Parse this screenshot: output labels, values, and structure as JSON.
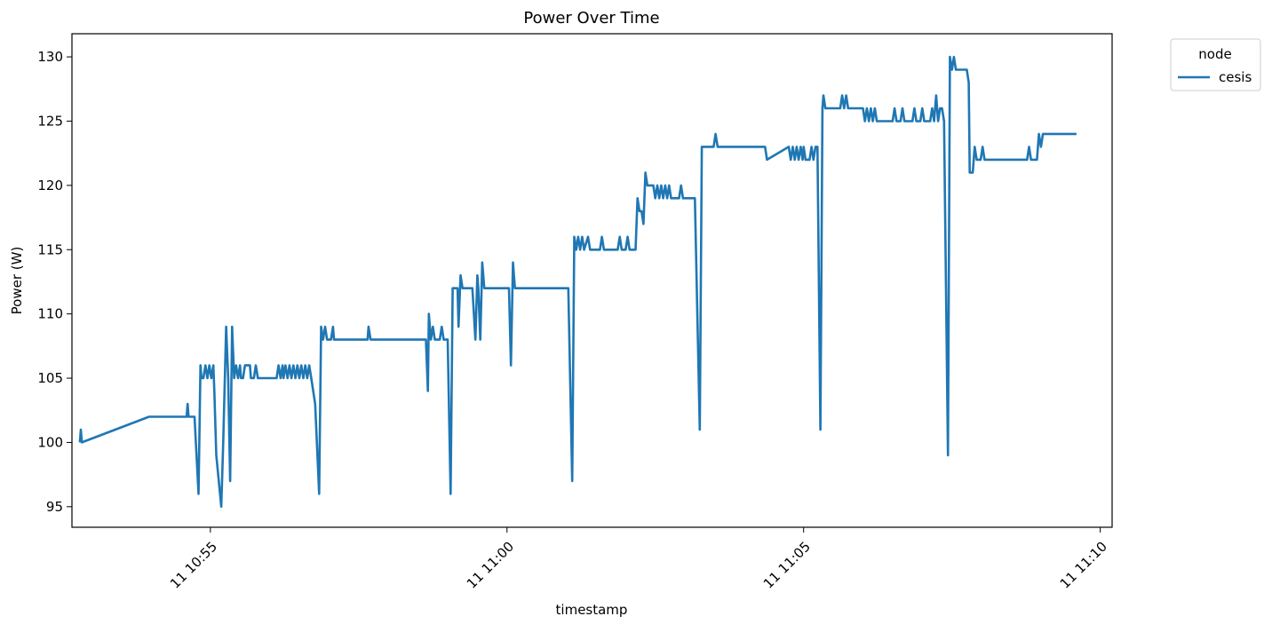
{
  "chart_data": {
    "type": "line",
    "title": "Power Over Time",
    "xlabel": "timestamp",
    "ylabel": "Power (W)",
    "xlim": [
      "10:52:40",
      "11:10:12"
    ],
    "ylim": [
      93.4,
      131.8
    ],
    "x_ticks": [
      "11 10:55",
      "11 11:00",
      "11 11:05",
      "11 11:10"
    ],
    "x_tick_times": [
      "10:55:00",
      "11:00:00",
      "11:05:00",
      "11:10:00"
    ],
    "y_ticks": [
      95,
      100,
      105,
      110,
      115,
      120,
      125,
      130
    ],
    "grid": false,
    "legend": {
      "title": "node",
      "placement": "outside-top-right"
    },
    "series": [
      {
        "name": "cesis",
        "color": "#1f77b4",
        "points": [
          [
            "10:52:48",
            100
          ],
          [
            "10:52:49",
            101
          ],
          [
            "10:52:50",
            100
          ],
          [
            "10:53:58",
            102
          ],
          [
            "10:54:36",
            102
          ],
          [
            "10:54:37",
            103
          ],
          [
            "10:54:38",
            102
          ],
          [
            "10:54:44",
            102
          ],
          [
            "10:54:48",
            96
          ],
          [
            "10:54:50",
            106
          ],
          [
            "10:54:51",
            105
          ],
          [
            "10:54:53",
            105
          ],
          [
            "10:54:55",
            106
          ],
          [
            "10:54:57",
            105
          ],
          [
            "10:54:59",
            106
          ],
          [
            "10:55:01",
            105
          ],
          [
            "10:55:03",
            106
          ],
          [
            "10:55:04",
            104
          ],
          [
            "10:55:06",
            99
          ],
          [
            "10:55:11",
            95
          ],
          [
            "10:55:13",
            100
          ],
          [
            "10:55:16",
            109
          ],
          [
            "10:55:18",
            105
          ],
          [
            "10:55:20",
            97
          ],
          [
            "10:55:22",
            109
          ],
          [
            "10:55:24",
            105
          ],
          [
            "10:55:26",
            106
          ],
          [
            "10:55:28",
            105
          ],
          [
            "10:55:30",
            106
          ],
          [
            "10:55:31",
            105
          ],
          [
            "10:55:33",
            105
          ],
          [
            "10:55:35",
            106
          ],
          [
            "10:55:40",
            106
          ],
          [
            "10:55:41",
            105
          ],
          [
            "10:55:44",
            105
          ],
          [
            "10:55:46",
            106
          ],
          [
            "10:55:48",
            105
          ],
          [
            "10:56:07",
            105
          ],
          [
            "10:56:09",
            106
          ],
          [
            "10:56:11",
            105
          ],
          [
            "10:56:13",
            106
          ],
          [
            "10:56:14",
            105
          ],
          [
            "10:56:16",
            106
          ],
          [
            "10:56:18",
            105
          ],
          [
            "10:56:20",
            106
          ],
          [
            "10:56:22",
            105
          ],
          [
            "10:56:24",
            106
          ],
          [
            "10:56:26",
            105
          ],
          [
            "10:56:28",
            106
          ],
          [
            "10:56:30",
            105
          ],
          [
            "10:56:32",
            106
          ],
          [
            "10:56:34",
            105
          ],
          [
            "10:56:36",
            106
          ],
          [
            "10:56:38",
            105
          ],
          [
            "10:56:40",
            106
          ],
          [
            "10:56:42",
            105
          ],
          [
            "10:56:46",
            103
          ],
          [
            "10:56:50",
            96
          ],
          [
            "10:56:52",
            109
          ],
          [
            "10:56:54",
            108
          ],
          [
            "10:56:56",
            109
          ],
          [
            "10:56:58",
            108
          ],
          [
            "10:57:02",
            108
          ],
          [
            "10:57:04",
            109
          ],
          [
            "10:57:05",
            108
          ],
          [
            "10:57:39",
            108
          ],
          [
            "10:57:40",
            109
          ],
          [
            "10:57:42",
            108
          ],
          [
            "10:58:34",
            108
          ],
          [
            "10:58:38",
            108
          ],
          [
            "10:58:40",
            104
          ],
          [
            "10:58:41",
            110
          ],
          [
            "10:58:43",
            108
          ],
          [
            "10:58:45",
            109
          ],
          [
            "10:58:47",
            108
          ],
          [
            "10:58:52",
            108
          ],
          [
            "10:58:54",
            109
          ],
          [
            "10:58:56",
            108
          ],
          [
            "10:59:00",
            108
          ],
          [
            "10:59:03",
            96
          ],
          [
            "10:59:05",
            112
          ],
          [
            "10:59:10",
            112
          ],
          [
            "10:59:11",
            109
          ],
          [
            "10:59:13",
            113
          ],
          [
            "10:59:15",
            112
          ],
          [
            "10:59:25",
            112
          ],
          [
            "10:59:28",
            108
          ],
          [
            "10:59:30",
            113
          ],
          [
            "10:59:31",
            112
          ],
          [
            "10:59:33",
            108
          ],
          [
            "10:59:35",
            114
          ],
          [
            "10:59:37",
            112
          ],
          [
            "11:00:02",
            112
          ],
          [
            "11:00:04",
            106
          ],
          [
            "11:00:06",
            114
          ],
          [
            "11:00:08",
            112
          ],
          [
            "11:01:02",
            112
          ],
          [
            "11:01:06",
            97
          ],
          [
            "11:01:08",
            116
          ],
          [
            "11:01:10",
            115
          ],
          [
            "11:01:12",
            116
          ],
          [
            "11:01:14",
            115
          ],
          [
            "11:01:16",
            116
          ],
          [
            "11:01:18",
            115
          ],
          [
            "11:01:22",
            116
          ],
          [
            "11:01:24",
            115
          ],
          [
            "11:01:34",
            115
          ],
          [
            "11:01:36",
            116
          ],
          [
            "11:01:38",
            115
          ],
          [
            "11:01:52",
            115
          ],
          [
            "11:01:54",
            116
          ],
          [
            "11:01:56",
            115
          ],
          [
            "11:02:00",
            115
          ],
          [
            "11:02:02",
            116
          ],
          [
            "11:02:04",
            115
          ],
          [
            "11:02:10",
            115
          ],
          [
            "11:02:12",
            119
          ],
          [
            "11:02:14",
            118
          ],
          [
            "11:02:16",
            118
          ],
          [
            "11:02:18",
            117
          ],
          [
            "11:02:20",
            121
          ],
          [
            "11:02:22",
            120
          ],
          [
            "11:02:28",
            120
          ],
          [
            "11:02:30",
            119
          ],
          [
            "11:02:32",
            120
          ],
          [
            "11:02:34",
            119
          ],
          [
            "11:02:36",
            120
          ],
          [
            "11:02:38",
            119
          ],
          [
            "11:02:40",
            120
          ],
          [
            "11:02:42",
            119
          ],
          [
            "11:02:44",
            120
          ],
          [
            "11:02:46",
            119
          ],
          [
            "11:02:54",
            119
          ],
          [
            "11:02:56",
            120
          ],
          [
            "11:02:58",
            119
          ],
          [
            "11:03:10",
            119
          ],
          [
            "11:03:15",
            101
          ],
          [
            "11:03:17",
            123
          ],
          [
            "11:03:29",
            123
          ],
          [
            "11:03:31",
            124
          ],
          [
            "11:03:33",
            123
          ],
          [
            "11:04:21",
            123
          ],
          [
            "11:04:23",
            122
          ],
          [
            "11:04:45",
            123
          ],
          [
            "11:04:47",
            122
          ],
          [
            "11:04:49",
            123
          ],
          [
            "11:04:51",
            122
          ],
          [
            "11:04:53",
            123
          ],
          [
            "11:04:55",
            122
          ],
          [
            "11:04:57",
            123
          ],
          [
            "11:04:59",
            122
          ],
          [
            "11:05:00",
            123
          ],
          [
            "11:05:02",
            122
          ],
          [
            "11:05:06",
            122
          ],
          [
            "11:05:08",
            123
          ],
          [
            "11:05:10",
            122
          ],
          [
            "11:05:12",
            123
          ],
          [
            "11:05:14",
            123
          ],
          [
            "11:05:17",
            101
          ],
          [
            "11:05:19",
            126
          ],
          [
            "11:05:20",
            127
          ],
          [
            "11:05:22",
            126
          ],
          [
            "11:05:37",
            126
          ],
          [
            "11:05:39",
            127
          ],
          [
            "11:05:41",
            126
          ],
          [
            "11:05:43",
            127
          ],
          [
            "11:05:45",
            126
          ],
          [
            "11:06:00",
            126
          ],
          [
            "11:06:02",
            125
          ],
          [
            "11:06:04",
            126
          ],
          [
            "11:06:06",
            125
          ],
          [
            "11:06:08",
            126
          ],
          [
            "11:06:10",
            125
          ],
          [
            "11:06:12",
            126
          ],
          [
            "11:06:14",
            125
          ],
          [
            "11:06:30",
            125
          ],
          [
            "11:06:32",
            126
          ],
          [
            "11:06:34",
            125
          ],
          [
            "11:06:38",
            125
          ],
          [
            "11:06:40",
            126
          ],
          [
            "11:06:42",
            125
          ],
          [
            "11:06:50",
            125
          ],
          [
            "11:06:52",
            126
          ],
          [
            "11:06:54",
            125
          ],
          [
            "11:06:58",
            125
          ],
          [
            "11:07:00",
            126
          ],
          [
            "11:07:02",
            125
          ],
          [
            "11:07:08",
            125
          ],
          [
            "11:07:10",
            126
          ],
          [
            "11:07:12",
            125
          ],
          [
            "11:07:14",
            127
          ],
          [
            "11:07:16",
            125
          ],
          [
            "11:07:18",
            126
          ],
          [
            "11:07:20",
            126
          ],
          [
            "11:07:22",
            125
          ],
          [
            "11:07:26",
            99
          ],
          [
            "11:07:28",
            130
          ],
          [
            "11:07:30",
            129
          ],
          [
            "11:07:32",
            130
          ],
          [
            "11:07:34",
            129
          ],
          [
            "11:07:45",
            129
          ],
          [
            "11:07:47",
            128
          ],
          [
            "11:07:48",
            121
          ],
          [
            "11:07:51",
            121
          ],
          [
            "11:07:53",
            123
          ],
          [
            "11:07:55",
            122
          ],
          [
            "11:07:59",
            122
          ],
          [
            "11:08:01",
            123
          ],
          [
            "11:08:03",
            122
          ],
          [
            "11:08:46",
            122
          ],
          [
            "11:08:48",
            123
          ],
          [
            "11:08:50",
            122
          ],
          [
            "11:08:56",
            122
          ],
          [
            "11:08:58",
            124
          ],
          [
            "11:09:00",
            123
          ],
          [
            "11:09:02",
            124
          ],
          [
            "11:09:04",
            124
          ],
          [
            "11:09:36",
            124
          ]
        ]
      }
    ]
  }
}
